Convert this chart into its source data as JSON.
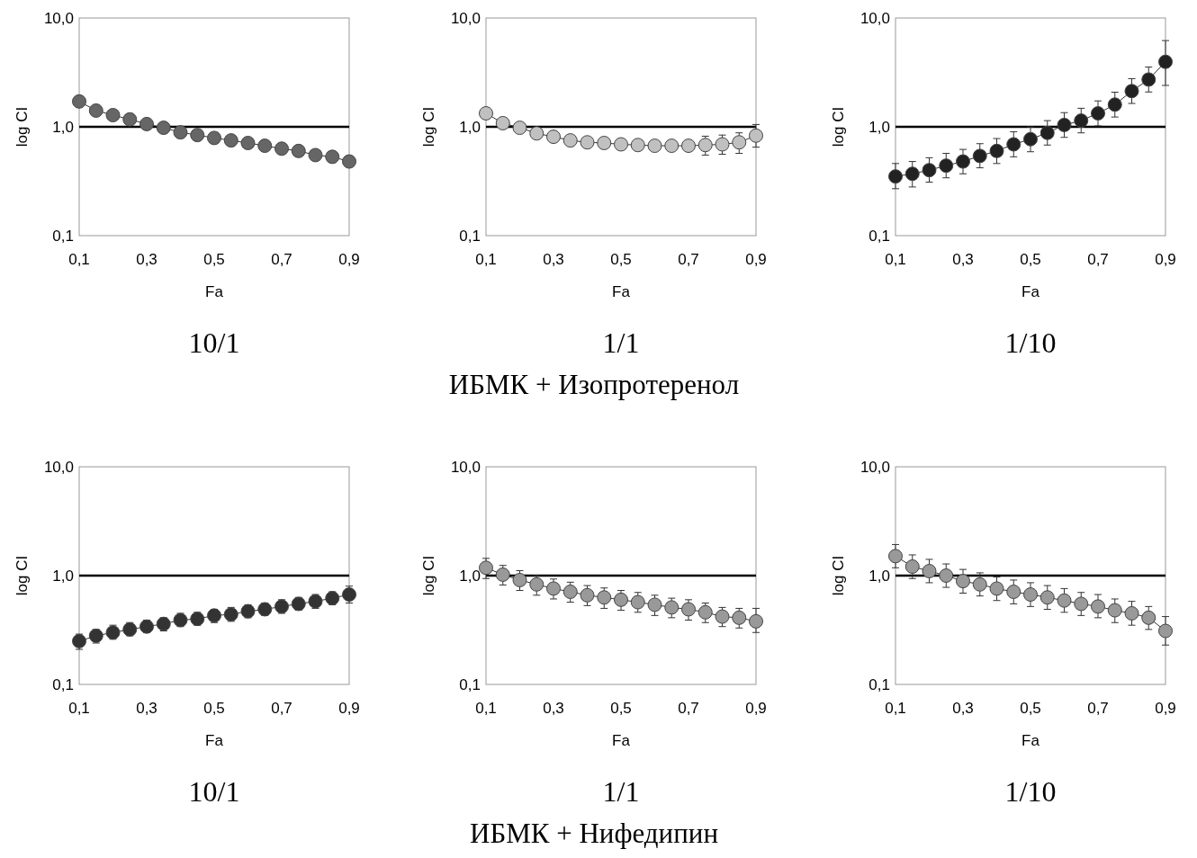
{
  "chart_data": [
    {
      "type": "line",
      "title": "10/1",
      "xlabel": "Fa",
      "ylabel": "log CI",
      "log": "y",
      "marker": "circle",
      "line_style": "solid",
      "grid": false,
      "xlim": [
        0.1,
        0.9
      ],
      "ylim": [
        0.1,
        10
      ],
      "xticks": [
        {
          "value": 0.1,
          "label": "0,1"
        },
        {
          "value": 0.3,
          "label": "0,3"
        },
        {
          "value": 0.5,
          "label": "0,5"
        },
        {
          "value": 0.7,
          "label": "0,7"
        },
        {
          "value": 0.9,
          "label": "0,9"
        }
      ],
      "yticks": [
        {
          "value": 0.1,
          "label": "0,1"
        },
        {
          "value": 1,
          "label": "1,0"
        },
        {
          "value": 10,
          "label": "10,0"
        }
      ],
      "ref_lines": [
        {
          "axis": "y",
          "value": 1,
          "color": "#000000"
        }
      ],
      "x": [
        0.1,
        0.15,
        0.2,
        0.25,
        0.3,
        0.35,
        0.4,
        0.45,
        0.5,
        0.55,
        0.6,
        0.65,
        0.7,
        0.75,
        0.8,
        0.85,
        0.9
      ],
      "series": [
        {
          "color": "#666666",
          "values": [
            1.71,
            1.41,
            1.28,
            1.17,
            1.06,
            0.98,
            0.89,
            0.84,
            0.79,
            0.75,
            0.71,
            0.67,
            0.63,
            0.6,
            0.55,
            0.53,
            0.48
          ]
        }
      ]
    },
    {
      "type": "line",
      "title": "1/1",
      "xlabel": "Fa",
      "ylabel": "log CI",
      "log": "y",
      "marker": "circle",
      "line_style": "solid",
      "grid": false,
      "xlim": [
        0.1,
        0.9
      ],
      "ylim": [
        0.1,
        10
      ],
      "xticks": [
        {
          "value": 0.1,
          "label": "0,1"
        },
        {
          "value": 0.3,
          "label": "0,3"
        },
        {
          "value": 0.5,
          "label": "0,5"
        },
        {
          "value": 0.7,
          "label": "0,7"
        },
        {
          "value": 0.9,
          "label": "0,9"
        }
      ],
      "yticks": [
        {
          "value": 0.1,
          "label": "0,1"
        },
        {
          "value": 1,
          "label": "1,0"
        },
        {
          "value": 10,
          "label": "10,0"
        }
      ],
      "ref_lines": [
        {
          "axis": "y",
          "value": 1,
          "color": "#000000"
        }
      ],
      "annotations": [
        "ИБМК +  Изопротеренол"
      ],
      "x": [
        0.1,
        0.15,
        0.2,
        0.25,
        0.3,
        0.35,
        0.4,
        0.45,
        0.5,
        0.55,
        0.6,
        0.65,
        0.7,
        0.75,
        0.8,
        0.85,
        0.9
      ],
      "series": [
        {
          "color": "#c0c0c0",
          "values": [
            1.33,
            1.08,
            0.98,
            0.87,
            0.81,
            0.75,
            0.72,
            0.71,
            0.69,
            0.68,
            0.67,
            0.67,
            0.67,
            0.68,
            0.69,
            0.72,
            0.83
          ],
          "errors": [
            null,
            null,
            null,
            null,
            null,
            null,
            null,
            null,
            null,
            null,
            null,
            null,
            null,
            [
              0.55,
              0.82
            ],
            [
              0.56,
              0.84
            ],
            [
              0.57,
              0.88
            ],
            [
              0.65,
              1.05
            ]
          ]
        }
      ]
    },
    {
      "type": "line",
      "title": "1/10",
      "xlabel": "Fa",
      "ylabel": "log CI",
      "log": "y",
      "marker": "circle",
      "line_style": "solid",
      "grid": false,
      "xlim": [
        0.1,
        0.9
      ],
      "ylim": [
        0.1,
        10
      ],
      "xticks": [
        {
          "value": 0.1,
          "label": "0,1"
        },
        {
          "value": 0.3,
          "label": "0,3"
        },
        {
          "value": 0.5,
          "label": "0,5"
        },
        {
          "value": 0.7,
          "label": "0,7"
        },
        {
          "value": 0.9,
          "label": "0,9"
        }
      ],
      "yticks": [
        {
          "value": 0.1,
          "label": "0,1"
        },
        {
          "value": 1,
          "label": "1,0"
        },
        {
          "value": 10,
          "label": "10,0"
        }
      ],
      "ref_lines": [
        {
          "axis": "y",
          "value": 1,
          "color": "#000000"
        }
      ],
      "x": [
        0.1,
        0.15,
        0.2,
        0.25,
        0.3,
        0.35,
        0.4,
        0.45,
        0.5,
        0.55,
        0.6,
        0.65,
        0.7,
        0.75,
        0.8,
        0.85,
        0.9
      ],
      "series": [
        {
          "color": "#222222",
          "values": [
            0.35,
            0.37,
            0.4,
            0.44,
            0.48,
            0.54,
            0.6,
            0.69,
            0.77,
            0.88,
            1.04,
            1.14,
            1.33,
            1.6,
            2.13,
            2.72,
            3.96
          ],
          "errors": [
            [
              0.27,
              0.46
            ],
            [
              0.28,
              0.48
            ],
            [
              0.31,
              0.52
            ],
            [
              0.34,
              0.57
            ],
            [
              0.37,
              0.62
            ],
            [
              0.42,
              0.7
            ],
            [
              0.46,
              0.78
            ],
            [
              0.53,
              0.9
            ],
            [
              0.59,
              1.0
            ],
            [
              0.68,
              1.14
            ],
            [
              0.8,
              1.35
            ],
            [
              0.88,
              1.48
            ],
            [
              1.02,
              1.73
            ],
            [
              1.23,
              2.08
            ],
            [
              1.64,
              2.77
            ],
            [
              2.09,
              3.54
            ],
            [
              2.4,
              6.2
            ]
          ]
        }
      ]
    },
    {
      "type": "line",
      "title": "10/1",
      "xlabel": "Fa",
      "ylabel": "log CI",
      "log": "y",
      "marker": "circle",
      "line_style": "solid",
      "grid": false,
      "xlim": [
        0.1,
        0.9
      ],
      "ylim": [
        0.1,
        10
      ],
      "xticks": [
        {
          "value": 0.1,
          "label": "0,1"
        },
        {
          "value": 0.3,
          "label": "0,3"
        },
        {
          "value": 0.5,
          "label": "0,5"
        },
        {
          "value": 0.7,
          "label": "0,7"
        },
        {
          "value": 0.9,
          "label": "0,9"
        }
      ],
      "yticks": [
        {
          "value": 0.1,
          "label": "0,1"
        },
        {
          "value": 1,
          "label": "1,0"
        },
        {
          "value": 10,
          "label": "10,0"
        }
      ],
      "ref_lines": [
        {
          "axis": "y",
          "value": 1,
          "color": "#000000"
        }
      ],
      "x": [
        0.1,
        0.15,
        0.2,
        0.25,
        0.3,
        0.35,
        0.4,
        0.45,
        0.5,
        0.55,
        0.6,
        0.65,
        0.7,
        0.75,
        0.8,
        0.85,
        0.9
      ],
      "series": [
        {
          "color": "#333333",
          "values": [
            0.25,
            0.28,
            0.3,
            0.32,
            0.34,
            0.36,
            0.39,
            0.4,
            0.43,
            0.44,
            0.47,
            0.49,
            0.52,
            0.55,
            0.58,
            0.62,
            0.67
          ],
          "errors": [
            [
              0.21,
              0.29
            ],
            [
              0.24,
              0.32
            ],
            [
              0.26,
              0.35
            ],
            [
              0.28,
              0.37
            ],
            [
              0.3,
              0.39
            ],
            [
              0.31,
              0.41
            ],
            [
              0.34,
              0.45
            ],
            [
              0.35,
              0.46
            ],
            [
              0.37,
              0.49
            ],
            [
              0.38,
              0.51
            ],
            [
              0.41,
              0.54
            ],
            [
              0.43,
              0.56
            ],
            [
              0.45,
              0.6
            ],
            [
              0.48,
              0.63
            ],
            [
              0.5,
              0.67
            ],
            [
              0.54,
              0.71
            ],
            [
              0.56,
              0.8
            ]
          ]
        }
      ]
    },
    {
      "type": "line",
      "title": "1/1",
      "xlabel": "Fa",
      "ylabel": "log CI",
      "log": "y",
      "marker": "circle",
      "line_style": "solid",
      "grid": false,
      "xlim": [
        0.1,
        0.9
      ],
      "ylim": [
        0.1,
        10
      ],
      "xticks": [
        {
          "value": 0.1,
          "label": "0,1"
        },
        {
          "value": 0.3,
          "label": "0,3"
        },
        {
          "value": 0.5,
          "label": "0,5"
        },
        {
          "value": 0.7,
          "label": "0,7"
        },
        {
          "value": 0.9,
          "label": "0,9"
        }
      ],
      "yticks": [
        {
          "value": 0.1,
          "label": "0,1"
        },
        {
          "value": 1,
          "label": "1,0"
        },
        {
          "value": 10,
          "label": "10,0"
        }
      ],
      "ref_lines": [
        {
          "axis": "y",
          "value": 1,
          "color": "#000000"
        }
      ],
      "annotations": [
        "ИБМК + Нифедипин"
      ],
      "x": [
        0.1,
        0.15,
        0.2,
        0.25,
        0.3,
        0.35,
        0.4,
        0.45,
        0.5,
        0.55,
        0.6,
        0.65,
        0.7,
        0.75,
        0.8,
        0.85,
        0.9
      ],
      "series": [
        {
          "color": "#999999",
          "values": [
            1.18,
            1.02,
            0.91,
            0.83,
            0.76,
            0.71,
            0.66,
            0.63,
            0.6,
            0.57,
            0.54,
            0.51,
            0.49,
            0.46,
            0.42,
            0.41,
            0.38
          ],
          "errors": [
            [
              0.94,
              1.44
            ],
            [
              0.82,
              1.24
            ],
            [
              0.73,
              1.11
            ],
            [
              0.66,
              1.01
            ],
            [
              0.61,
              0.93
            ],
            [
              0.57,
              0.87
            ],
            [
              0.53,
              0.81
            ],
            [
              0.5,
              0.77
            ],
            [
              0.48,
              0.73
            ],
            [
              0.46,
              0.7
            ],
            [
              0.43,
              0.66
            ],
            [
              0.41,
              0.62
            ],
            [
              0.39,
              0.6
            ],
            [
              0.37,
              0.56
            ],
            [
              0.34,
              0.51
            ],
            [
              0.33,
              0.5
            ],
            [
              0.3,
              0.5
            ]
          ]
        }
      ]
    },
    {
      "type": "line",
      "title": "1/10",
      "xlabel": "Fa",
      "ylabel": "log CI",
      "log": "y",
      "marker": "circle",
      "line_style": "solid",
      "grid": false,
      "xlim": [
        0.1,
        0.9
      ],
      "ylim": [
        0.1,
        10
      ],
      "xticks": [
        {
          "value": 0.1,
          "label": "0,1"
        },
        {
          "value": 0.3,
          "label": "0,3"
        },
        {
          "value": 0.5,
          "label": "0,5"
        },
        {
          "value": 0.7,
          "label": "0,7"
        },
        {
          "value": 0.9,
          "label": "0,9"
        }
      ],
      "yticks": [
        {
          "value": 0.1,
          "label": "0,1"
        },
        {
          "value": 1,
          "label": "1,0"
        },
        {
          "value": 10,
          "label": "10,0"
        }
      ],
      "ref_lines": [
        {
          "axis": "y",
          "value": 1,
          "color": "#000000"
        }
      ],
      "x": [
        0.1,
        0.15,
        0.2,
        0.25,
        0.3,
        0.35,
        0.4,
        0.45,
        0.5,
        0.55,
        0.6,
        0.65,
        0.7,
        0.75,
        0.8,
        0.85,
        0.9
      ],
      "series": [
        {
          "color": "#999999",
          "values": [
            1.51,
            1.21,
            1.1,
            1.0,
            0.89,
            0.83,
            0.76,
            0.71,
            0.67,
            0.63,
            0.59,
            0.55,
            0.52,
            0.48,
            0.45,
            0.41,
            0.31
          ],
          "errors": [
            [
              1.18,
              1.93
            ],
            [
              0.94,
              1.55
            ],
            [
              0.86,
              1.41
            ],
            [
              0.78,
              1.28
            ],
            [
              0.69,
              1.14
            ],
            [
              0.65,
              1.06
            ],
            [
              0.59,
              0.97
            ],
            [
              0.55,
              0.91
            ],
            [
              0.52,
              0.86
            ],
            [
              0.49,
              0.81
            ],
            [
              0.46,
              0.76
            ],
            [
              0.43,
              0.7
            ],
            [
              0.41,
              0.67
            ],
            [
              0.37,
              0.61
            ],
            [
              0.35,
              0.58
            ],
            [
              0.32,
              0.52
            ],
            [
              0.23,
              0.42
            ]
          ]
        }
      ]
    }
  ]
}
